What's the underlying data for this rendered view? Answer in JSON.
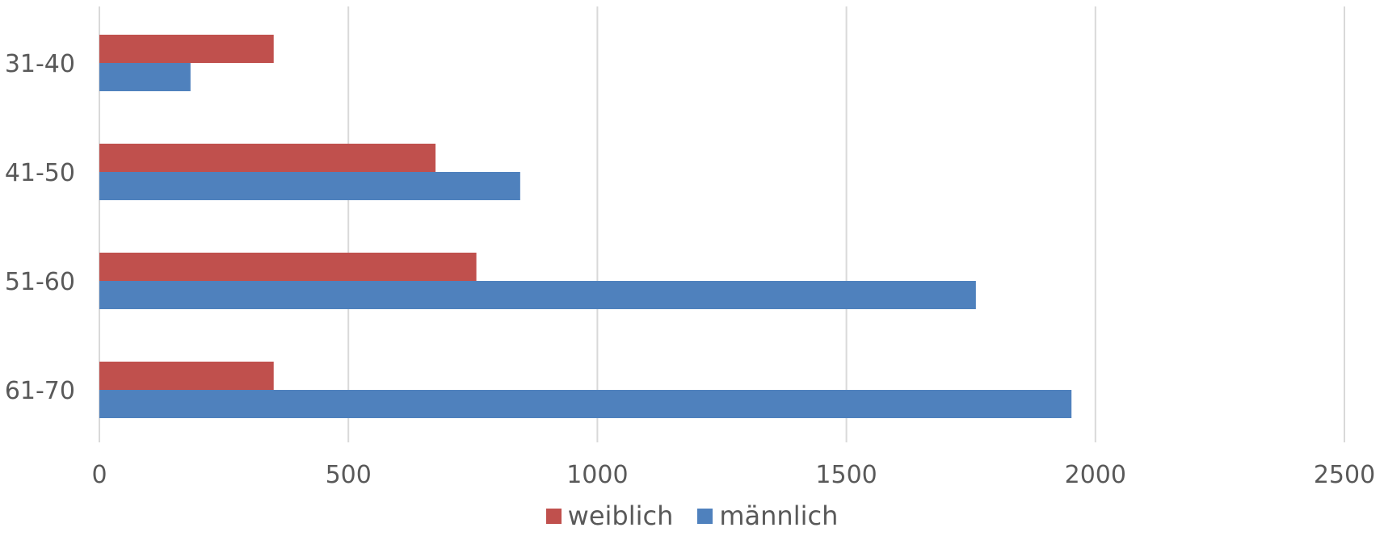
{
  "chart_data": {
    "type": "bar",
    "orientation": "horizontal",
    "title": "",
    "xlabel": "",
    "ylabel": "",
    "categories": [
      "31-40",
      "41-50",
      "51-60",
      "61-70"
    ],
    "series": [
      {
        "name": "weiblich",
        "color": "#C0504D",
        "values": [
          350,
          675,
          757,
          350
        ]
      },
      {
        "name": "männlich",
        "color": "#4F81BD",
        "values": [
          183,
          845,
          1760,
          1952
        ]
      }
    ],
    "xlim": [
      0,
      2500
    ],
    "xticks": [
      "0",
      "500",
      "1000",
      "1500",
      "2000",
      "2500"
    ],
    "grid": "vertical",
    "legend_position": "bottom"
  }
}
